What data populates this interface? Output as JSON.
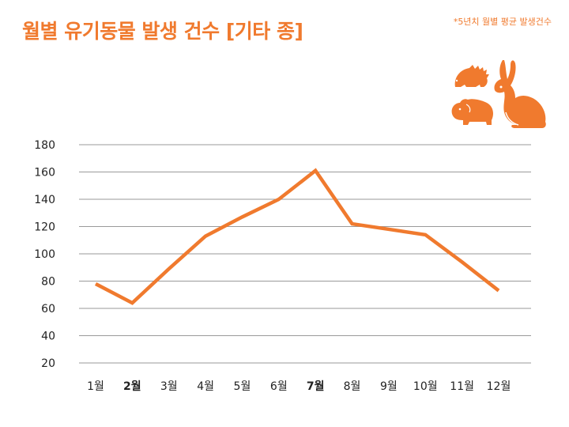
{
  "colors": {
    "accent": "#F07A2E",
    "grid": "#9A9A9A",
    "text": "#222222"
  },
  "header": {
    "title": "월별 유기동물 발생 건수 [기타 종]",
    "note": "*5년치 월별 평균 발생건수"
  },
  "illustration": {
    "icons": [
      "hedgehog-icon",
      "rabbit-icon",
      "guinea-pig-icon"
    ]
  },
  "chart_data": {
    "type": "line",
    "categories": [
      "1월",
      "2월",
      "3월",
      "4월",
      "5월",
      "6월",
      "7월",
      "8월",
      "9월",
      "10월",
      "11월",
      "12월"
    ],
    "highlighted_categories": [
      "2월",
      "7월"
    ],
    "series": [
      {
        "values": [
          78,
          64,
          89,
          113,
          127,
          140,
          161,
          122,
          118,
          114,
          94,
          73
        ]
      }
    ],
    "yticks": [
      20,
      40,
      60,
      80,
      100,
      120,
      140,
      160,
      180
    ],
    "ylim": [
      20,
      180
    ],
    "grid": true,
    "title": "",
    "xlabel": "",
    "ylabel": ""
  }
}
